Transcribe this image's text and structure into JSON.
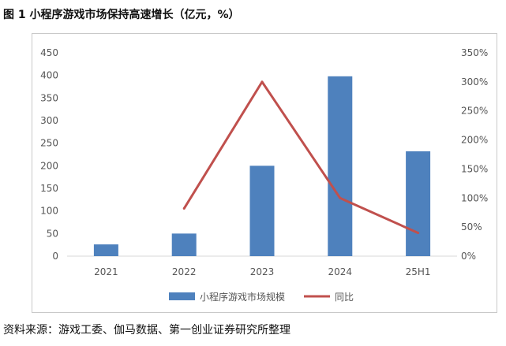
{
  "figure_title": "图 1  小程序游戏市场保持高速增长（亿元，%）",
  "source_note": "资料来源：游戏工委、伽马数据、第一创业证券研究所整理",
  "chart_data": {
    "type": "bar",
    "title": "",
    "categories": [
      "2021",
      "2022",
      "2023",
      "2024",
      "25H1"
    ],
    "series": [
      {
        "name": "小程序游戏市场规模",
        "type": "bar",
        "axis": "left",
        "color": "#4e81bd",
        "values": [
          26,
          50,
          200,
          398,
          232
        ]
      },
      {
        "name": "同比",
        "type": "line",
        "axis": "right",
        "color": "#c0504d",
        "values": [
          null,
          82,
          300,
          100,
          40
        ]
      }
    ],
    "y_left": {
      "min": 0,
      "max": 450,
      "step": 50,
      "ticks": [
        "0",
        "50",
        "100",
        "150",
        "200",
        "250",
        "300",
        "350",
        "400",
        "450"
      ]
    },
    "y_right": {
      "min": 0,
      "max": 350,
      "step": 50,
      "ticks": [
        "0%",
        "50%",
        "100%",
        "150%",
        "200%",
        "250%",
        "300%",
        "350%"
      ]
    },
    "legend_position": "bottom",
    "grid": false
  }
}
